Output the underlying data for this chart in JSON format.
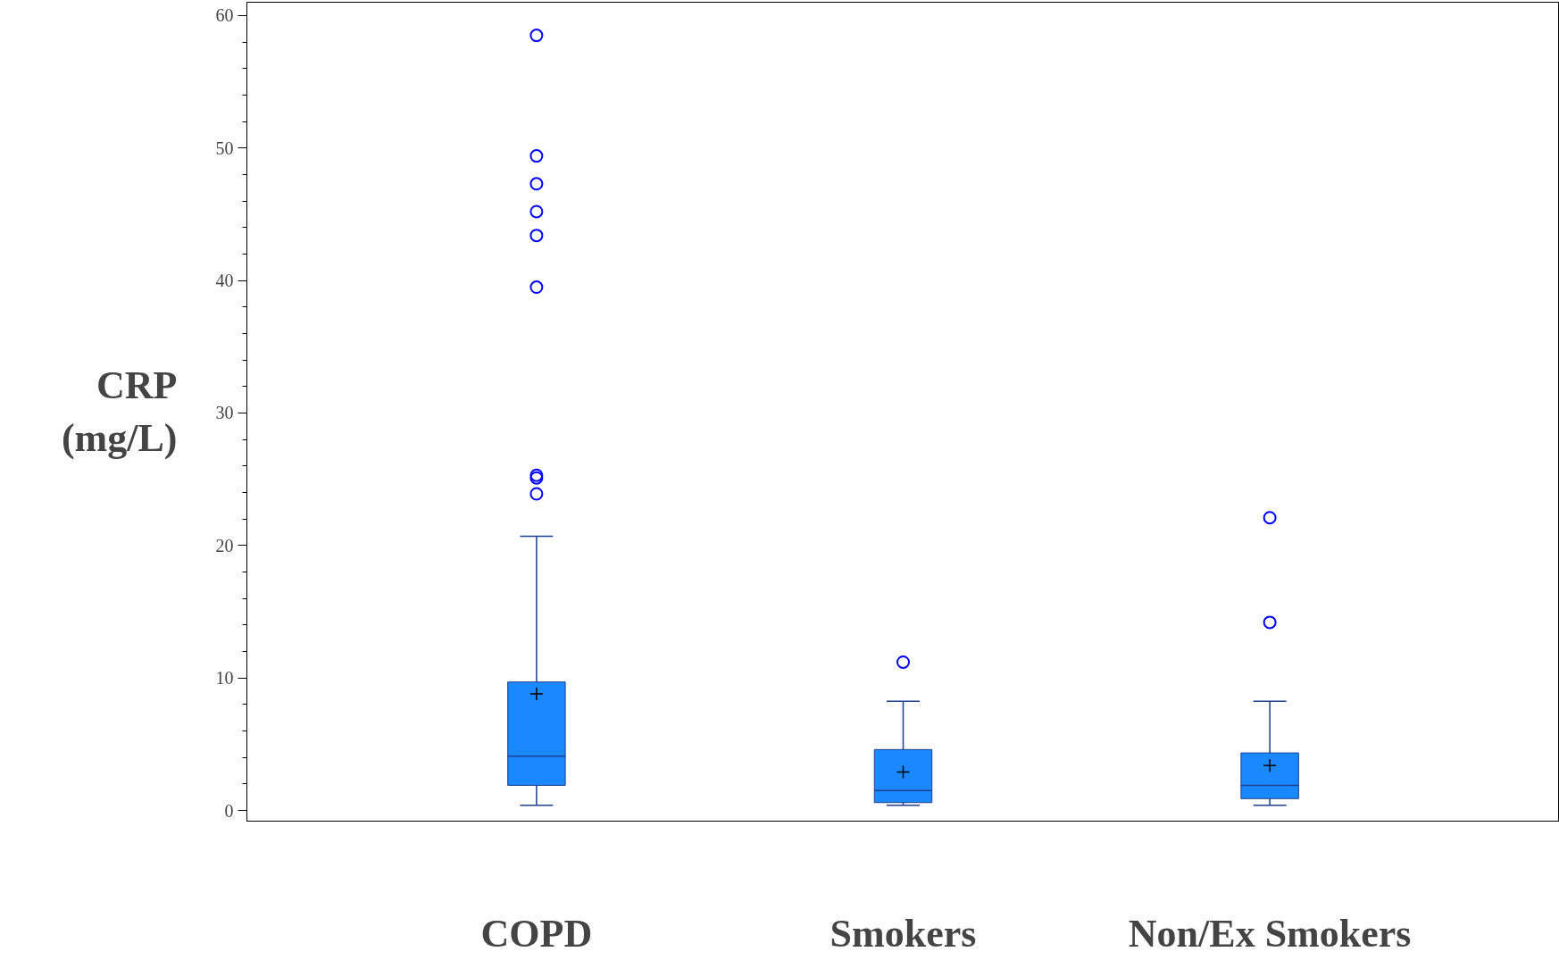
{
  "chart_data": {
    "type": "box",
    "ylabel": "CRP (mg/L)",
    "categories": [
      "COPD",
      "Smokers",
      "Non/Ex Smokers"
    ],
    "color": "#1a88ff",
    "marker": "circle",
    "ylim": [
      -0.8,
      61
    ],
    "yticks": [
      0,
      10,
      20,
      30,
      40,
      50,
      60
    ],
    "grid": false,
    "boxes": [
      {
        "low": 0.4,
        "q1": 1.9,
        "median": 4.1,
        "q3": 9.7,
        "high": 20.7,
        "mean": 8.8,
        "outliers": [
          58.5,
          49.4,
          47.3,
          45.2,
          43.4,
          39.5,
          25.3,
          25.1,
          23.9
        ]
      },
      {
        "low": 0.4,
        "q1": 0.6,
        "median": 1.5,
        "q3": 4.6,
        "high": 8.25,
        "mean": 2.9,
        "outliers": [
          11.2
        ]
      },
      {
        "low": 0.4,
        "q1": 0.9,
        "median": 1.9,
        "q3": 4.35,
        "high": 8.25,
        "mean": 3.4,
        "outliers": [
          22.1,
          14.2
        ]
      }
    ]
  }
}
